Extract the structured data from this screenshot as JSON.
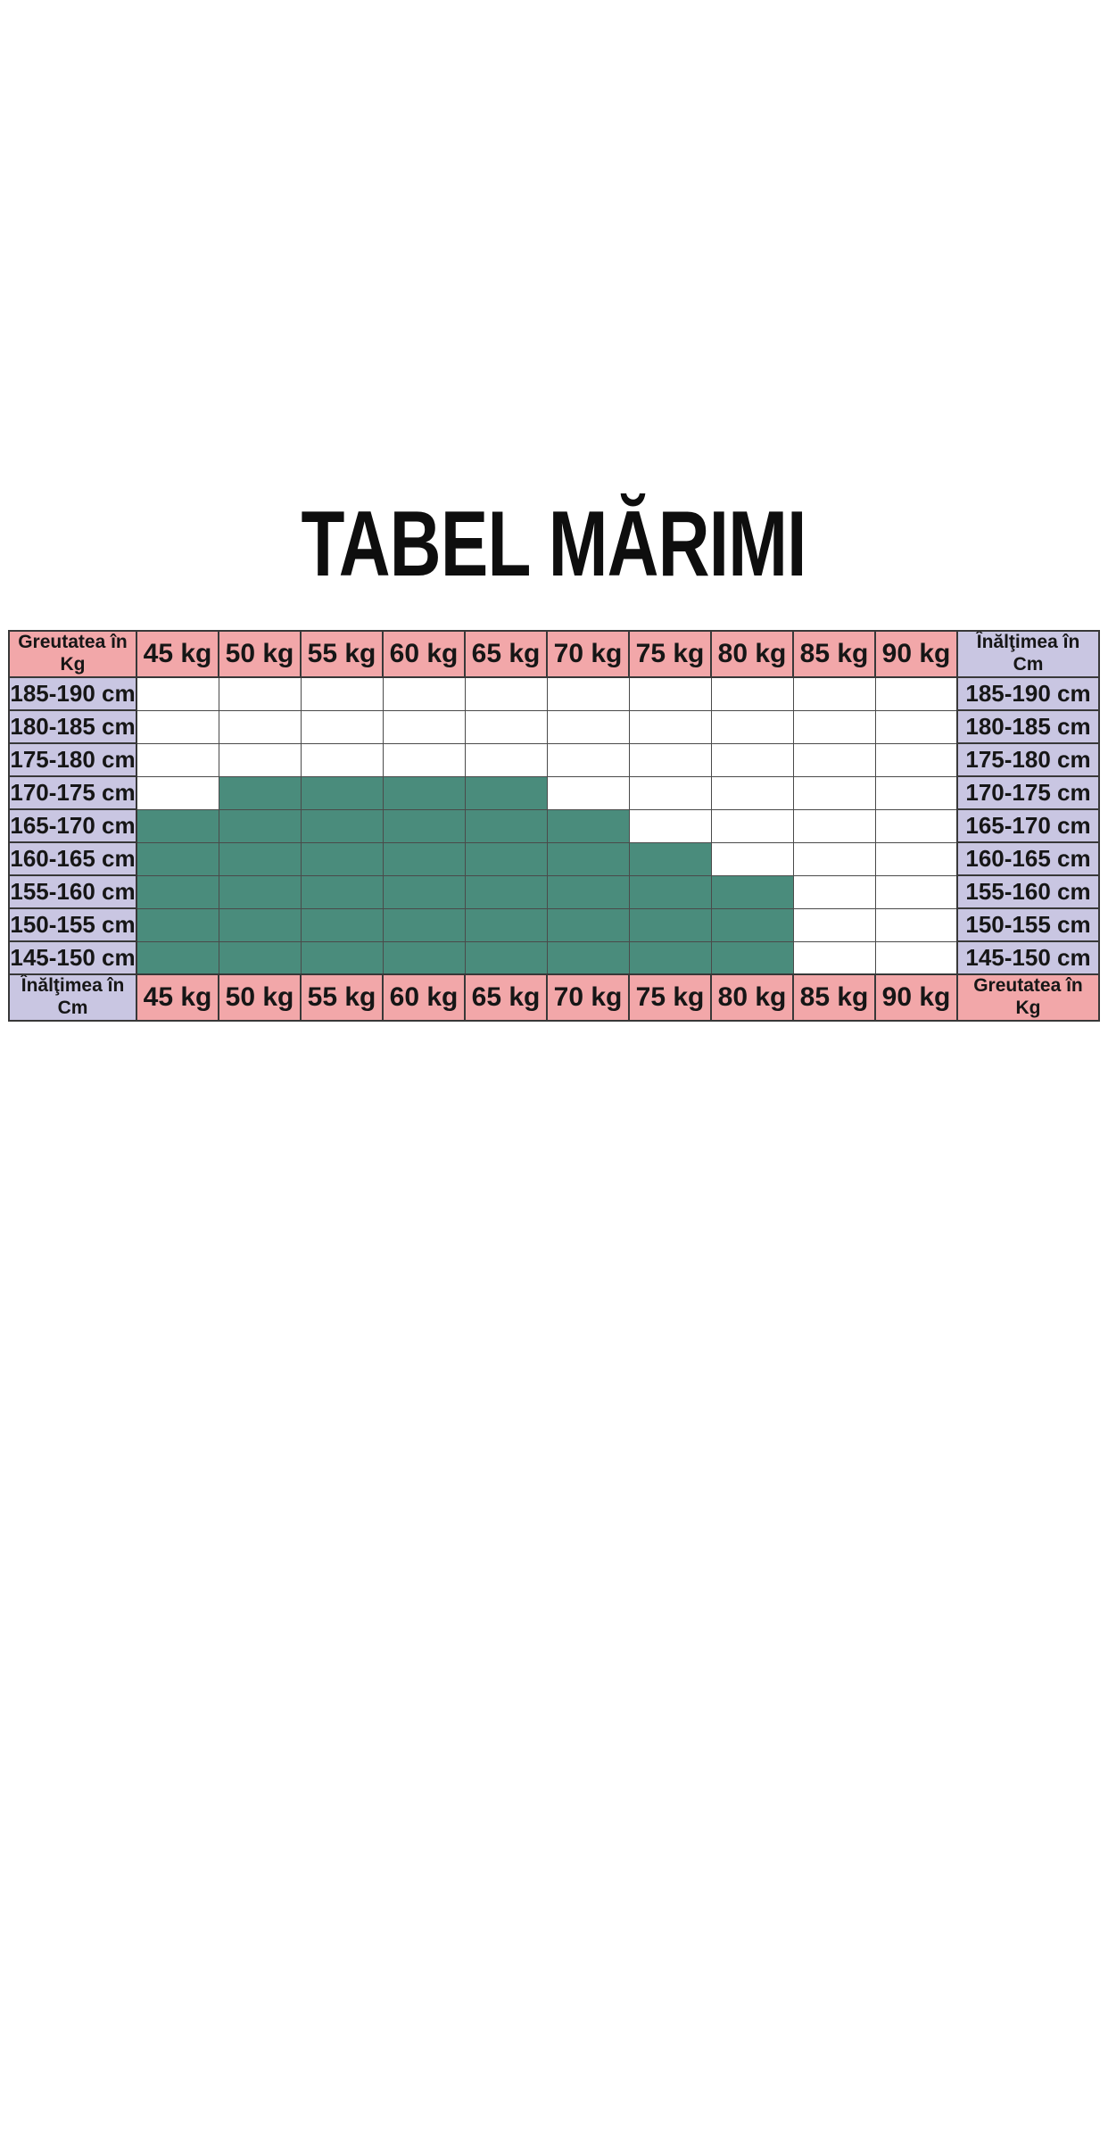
{
  "page": {
    "title": "TABEL MĂRIMI"
  },
  "colors": {
    "pink_header": "#F2A7A9",
    "lavender_header": "#C9C6E2",
    "fit_green": "#4A8C7C",
    "empty_cell": "#FFFFFF",
    "grid_border": "#3F3F3F",
    "text": "#161616",
    "background": "#FFFFFF"
  },
  "chart_data": {
    "type": "table",
    "title": "TABEL MĂRIMI",
    "description_visible_text_only": "Size chart grid: weight columns vs height rows; green cells mark the covered size range",
    "corner_headers": {
      "top_left": {
        "line1": "Greutatea în",
        "line2": "Kg"
      },
      "top_right": {
        "line1": "Înălţimea în",
        "line2": "Cm"
      },
      "bottom_left": {
        "line1": "Înălţimea în",
        "line2": "Cm"
      },
      "bottom_right": {
        "line1": "Greutatea în",
        "line2": "Kg"
      }
    },
    "weight_columns": [
      "45 kg",
      "50 kg",
      "55 kg",
      "60 kg",
      "65 kg",
      "70 kg",
      "75 kg",
      "80 kg",
      "85 kg",
      "90 kg"
    ],
    "height_rows": [
      "185-190 cm",
      "180-185 cm",
      "175-180 cm",
      "170-175 cm",
      "165-170 cm",
      "160-165 cm",
      "155-160 cm",
      "150-155 cm",
      "145-150 cm"
    ],
    "fit_matrix": [
      [
        0,
        0,
        0,
        0,
        0,
        0,
        0,
        0,
        0,
        0
      ],
      [
        0,
        0,
        0,
        0,
        0,
        0,
        0,
        0,
        0,
        0
      ],
      [
        0,
        0,
        0,
        0,
        0,
        0,
        0,
        0,
        0,
        0
      ],
      [
        0,
        1,
        1,
        1,
        1,
        0,
        0,
        0,
        0,
        0
      ],
      [
        1,
        1,
        1,
        1,
        1,
        1,
        0,
        0,
        0,
        0
      ],
      [
        1,
        1,
        1,
        1,
        1,
        1,
        1,
        0,
        0,
        0
      ],
      [
        1,
        1,
        1,
        1,
        1,
        1,
        1,
        1,
        0,
        0
      ],
      [
        1,
        1,
        1,
        1,
        1,
        1,
        1,
        1,
        0,
        0
      ],
      [
        1,
        1,
        1,
        1,
        1,
        1,
        1,
        1,
        0,
        0
      ]
    ],
    "fit_cell_color": "#4A8C7C",
    "layout_hints": {
      "header_rows": "weight labels repeated on top and bottom",
      "label_columns": "height labels repeated on left and right",
      "grid": "on"
    }
  }
}
